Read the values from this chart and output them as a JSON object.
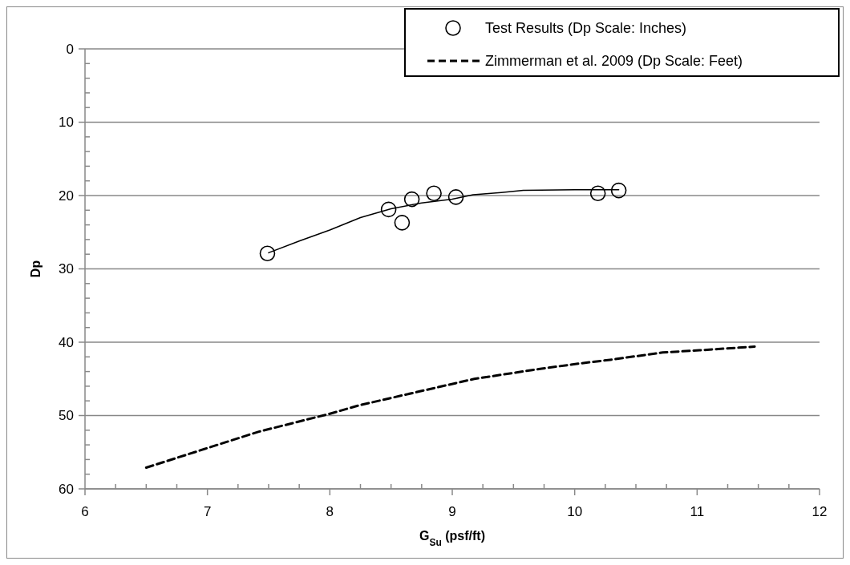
{
  "chart_data": {
    "type": "line",
    "xlabel": "G$_{Su}$ (psf/ft)",
    "ylabel": "Dp",
    "xlim": [
      6,
      12
    ],
    "ylim": [
      60,
      0
    ],
    "xticks": [
      6,
      {
        "value": 6.25,
        "label": null
      },
      {
        "value": 6.5,
        "label": null
      },
      {
        "value": 6.75,
        "label": null
      },
      7,
      {
        "value": 7.25,
        "label": null
      },
      {
        "value": 7.5,
        "label": null
      },
      {
        "value": 7.75,
        "label": null
      },
      8,
      {
        "value": 8.25,
        "label": null
      },
      {
        "value": 8.5,
        "label": null
      },
      {
        "value": 8.75,
        "label": null
      },
      9,
      {
        "value": 9.25,
        "label": null
      },
      {
        "value": 9.5,
        "label": null
      },
      {
        "value": 9.75,
        "label": null
      },
      10,
      {
        "value": 10.25,
        "label": null
      },
      {
        "value": 10.5,
        "label": null
      },
      {
        "value": 10.75,
        "label": null
      },
      11,
      {
        "value": 11.25,
        "label": null
      },
      {
        "value": 11.5,
        "label": null
      },
      {
        "value": 11.75,
        "label": null
      },
      12
    ],
    "yticks": [
      0,
      {
        "value": 2,
        "label": null
      },
      {
        "value": 4,
        "label": null
      },
      {
        "value": 6,
        "label": null
      },
      {
        "value": 8,
        "label": null
      },
      10,
      {
        "value": 12,
        "label": null
      },
      {
        "value": 14,
        "label": null
      },
      {
        "value": 16,
        "label": null
      },
      {
        "value": 18,
        "label": null
      },
      20,
      {
        "value": 22,
        "label": null
      },
      {
        "value": 24,
        "label": null
      },
      {
        "value": 26,
        "label": null
      },
      {
        "value": 28,
        "label": null
      },
      30,
      {
        "value": 32,
        "label": null
      },
      {
        "value": 34,
        "label": null
      },
      {
        "value": 36,
        "label": null
      },
      {
        "value": 38,
        "label": null
      },
      40,
      {
        "value": 42,
        "label": null
      },
      {
        "value": 44,
        "label": null
      },
      {
        "value": 46,
        "label": null
      },
      {
        "value": 48,
        "label": null
      },
      50,
      {
        "value": 52,
        "label": null
      },
      {
        "value": 54,
        "label": null
      },
      {
        "value": 56,
        "label": null
      },
      {
        "value": 58,
        "label": null
      },
      60
    ],
    "grid": "y",
    "legend": "top right",
    "series": [
      {
        "name": "Test Results (Dp Scale: Inches)",
        "type": "scatter",
        "marker": "circle",
        "color": "#000000",
        "x": [
          7.49,
          8.48,
          8.59,
          8.67,
          8.85,
          9.03,
          10.19,
          10.36
        ],
        "values": [
          27.9,
          21.9,
          23.7,
          20.5,
          19.7,
          20.2,
          19.7,
          19.3
        ]
      },
      {
        "line_style": "solid",
        "color": "#000000",
        "x": [
          7.5,
          7.75,
          8.0,
          8.25,
          8.5,
          8.75,
          9.0,
          9.17,
          9.4,
          9.58,
          10.0,
          10.36
        ],
        "values": [
          27.8,
          26.2,
          24.7,
          23.0,
          21.8,
          21.0,
          20.5,
          19.9,
          19.6,
          19.3,
          19.2,
          19.2
        ]
      },
      {
        "name": "Zimmerman et al. 2009 (Dp Scale: Feet)",
        "line_style": "dashed",
        "color": "#000000",
        "x": [
          6.5,
          7.42,
          7.99,
          8.24,
          9.18,
          9.73,
          10.04,
          10.29,
          10.72,
          11.02,
          11.47
        ],
        "values": [
          57.1,
          52.2,
          49.8,
          48.6,
          45.0,
          43.6,
          42.9,
          42.4,
          41.4,
          41.1,
          40.6
        ]
      }
    ]
  }
}
